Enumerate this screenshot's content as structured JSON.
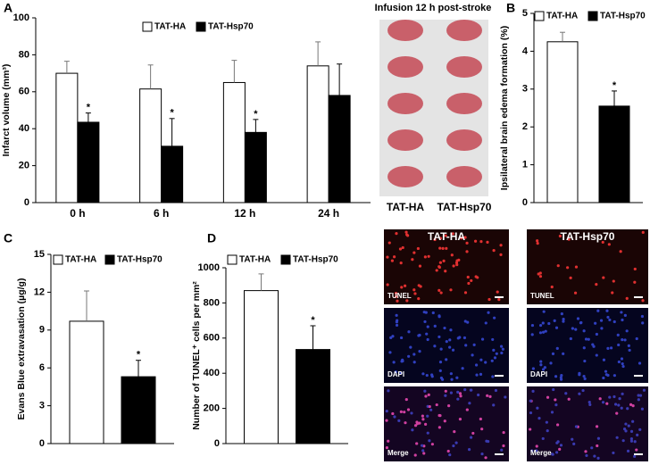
{
  "chart_data": [
    {
      "type": "bar",
      "panel": "A",
      "ylabel": "Infarct volume (mm³)",
      "categories": [
        "0 h",
        "6 h",
        "12 h",
        "24 h"
      ],
      "series": [
        {
          "name": "TAT-HA",
          "color": "#ffffff",
          "values": [
            70,
            61.5,
            65,
            74
          ],
          "errors": [
            6.5,
            13,
            12,
            13
          ],
          "markers": [
            null,
            null,
            null,
            null
          ]
        },
        {
          "name": "TAT-Hsp70",
          "color": "#000000",
          "values": [
            43.5,
            30.5,
            38,
            58
          ],
          "errors": [
            5,
            15,
            7,
            17
          ],
          "markers": [
            "*",
            "*",
            "*",
            null
          ]
        }
      ],
      "ylim": [
        0,
        100
      ],
      "yticks": [
        0,
        20,
        40,
        60,
        80,
        100
      ]
    },
    {
      "type": "bar",
      "panel": "B",
      "ylabel": "Ipsilateral brain edema formation (%)",
      "categories": [
        null
      ],
      "series": [
        {
          "name": "TAT-HA",
          "color": "#ffffff",
          "values": [
            4.25
          ],
          "errors": [
            0.25
          ],
          "markers": [
            null
          ]
        },
        {
          "name": "TAT-Hsp70",
          "color": "#000000",
          "values": [
            2.55
          ],
          "errors": [
            0.4
          ],
          "markers": [
            "*"
          ]
        }
      ],
      "ylim": [
        0,
        5
      ],
      "yticks": [
        0,
        1,
        2,
        3,
        4,
        5
      ]
    },
    {
      "type": "bar",
      "panel": "C",
      "ylabel": "Evans Blue extravasation (µg/g)",
      "categories": [
        null
      ],
      "series": [
        {
          "name": "TAT-HA",
          "color": "#ffffff",
          "values": [
            9.7
          ],
          "errors": [
            2.4
          ],
          "markers": [
            null
          ]
        },
        {
          "name": "TAT-Hsp70",
          "color": "#000000",
          "values": [
            5.3
          ],
          "errors": [
            1.3
          ],
          "markers": [
            "*"
          ]
        }
      ],
      "ylim": [
        0,
        15
      ],
      "yticks": [
        0,
        3,
        6,
        9,
        12,
        15
      ]
    },
    {
      "type": "bar",
      "panel": "D",
      "ylabel": "Number of TUNEL⁺ cells per mm²",
      "categories": [
        null
      ],
      "series": [
        {
          "name": "TAT-HA",
          "color": "#ffffff",
          "values": [
            870
          ],
          "errors": [
            95
          ],
          "markers": [
            null
          ]
        },
        {
          "name": "TAT-Hsp70",
          "color": "#000000",
          "values": [
            535
          ],
          "errors": [
            135
          ],
          "markers": [
            "*"
          ]
        }
      ],
      "ylim": [
        0,
        1000
      ],
      "yticks": [
        0,
        200,
        400,
        600,
        800,
        1000
      ]
    }
  ],
  "brain_image": {
    "title": "Infusion 12 h post-stroke",
    "labels": [
      "TAT-HA",
      "TAT-Hsp70"
    ]
  },
  "microscopy": {
    "columns": [
      "TAT-HA",
      "TAT-Hsp70"
    ],
    "rows": [
      "TUNEL",
      "DAPI",
      "Merge"
    ]
  }
}
